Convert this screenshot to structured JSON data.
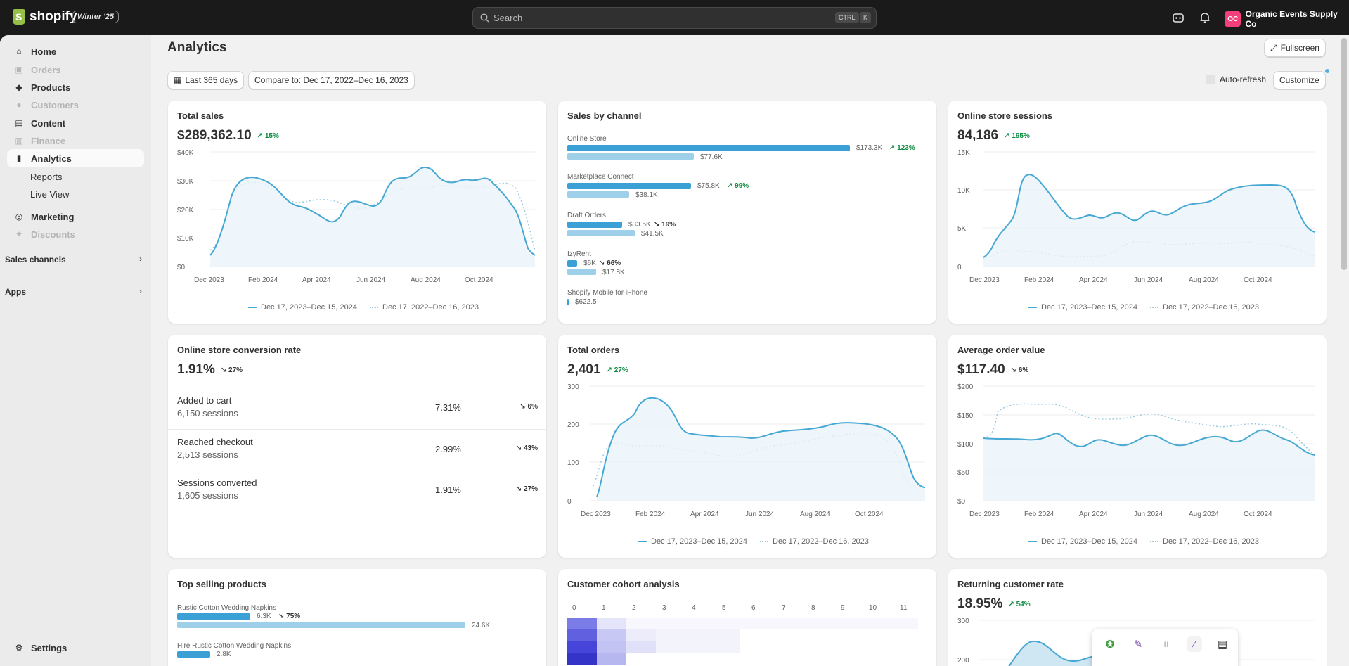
{
  "topbar": {
    "brand": "shopify",
    "edition_badge": "Winter '25",
    "search_placeholder": "Search",
    "shortcut_ctrl": "CTRL",
    "shortcut_k": "K",
    "store_initials": "OC",
    "store_name": "Organic Events Supply Co"
  },
  "sidebar": {
    "items": [
      {
        "label": "Home",
        "icon": "home-icon"
      },
      {
        "label": "Orders",
        "icon": "orders-icon"
      },
      {
        "label": "Products",
        "icon": "tag-icon"
      },
      {
        "label": "Customers",
        "icon": "person-icon"
      },
      {
        "label": "Content",
        "icon": "content-icon"
      },
      {
        "label": "Finance",
        "icon": "bank-icon"
      },
      {
        "label": "Analytics",
        "icon": "chart-icon"
      },
      {
        "label": "Marketing",
        "icon": "target-icon"
      },
      {
        "label": "Discounts",
        "icon": "discount-icon"
      }
    ],
    "sub_reports": "Reports",
    "sub_live_view": "Live View",
    "sales_channels": "Sales channels",
    "apps": "Apps",
    "settings": "Settings"
  },
  "page": {
    "title": "Analytics",
    "fullscreen": "Fullscreen",
    "date_range": "Last 365 days",
    "compare": "Compare to: Dec 17, 2022–Dec 16, 2023",
    "auto_refresh": "Auto-refresh",
    "customize": "Customize"
  },
  "legend": {
    "current": "Dec 17, 2023–Dec 15, 2024",
    "previous": "Dec 17, 2022–Dec 16, 2023"
  },
  "x_ticks": [
    "Dec 2023",
    "Feb 2024",
    "Apr 2024",
    "Jun 2024",
    "Aug 2024",
    "Oct 2024"
  ],
  "total_sales": {
    "title": "Total sales",
    "value": "$289,362.10",
    "delta": "↗ 15%",
    "y_ticks": [
      "$40K",
      "$30K",
      "$20K",
      "$10K",
      "$0"
    ]
  },
  "sales_by_channel": {
    "title": "Sales by channel",
    "channels": [
      {
        "name": "Online Store",
        "current": "$173.3K",
        "previous": "$77.6K",
        "delta": "↗ 123%"
      },
      {
        "name": "Marketplace Connect",
        "current": "$75.8K",
        "previous": "$38.1K",
        "delta": "↗ 99%"
      },
      {
        "name": "Draft Orders",
        "current": "$33.5K",
        "previous": "$41.5K",
        "delta": "↘ 19%"
      },
      {
        "name": "IzyRent",
        "current": "$6K",
        "previous": "$17.8K",
        "delta": "↘ 66%"
      },
      {
        "name": "Shopify Mobile for iPhone",
        "current": "$622.5",
        "previous": "",
        "delta": ""
      }
    ]
  },
  "online_sessions": {
    "title": "Online store sessions",
    "value": "84,186",
    "delta": "↗ 195%",
    "y_ticks": [
      "15K",
      "10K",
      "5K",
      "0"
    ]
  },
  "conversion": {
    "title": "Online store conversion rate",
    "value": "1.91%",
    "delta": "↘ 27%",
    "rows": [
      {
        "label": "Added to cart",
        "sessions": "6,150 sessions",
        "pct": "7.31%",
        "change": "↘ 6%"
      },
      {
        "label": "Reached checkout",
        "sessions": "2,513 sessions",
        "pct": "2.99%",
        "change": "↘ 43%"
      },
      {
        "label": "Sessions converted",
        "sessions": "1,605 sessions",
        "pct": "1.91%",
        "change": "↘ 27%"
      }
    ]
  },
  "total_orders": {
    "title": "Total orders",
    "value": "2,401",
    "delta": "↗ 27%",
    "y_ticks": [
      "300",
      "200",
      "100",
      "0"
    ]
  },
  "aov": {
    "title": "Average order value",
    "value": "$117.40",
    "delta": "↘ 6%",
    "y_ticks": [
      "$200",
      "$150",
      "$100",
      "$50",
      "$0"
    ]
  },
  "top_products": {
    "title": "Top selling products",
    "items": [
      {
        "name": "Rustic Cotton Wedding Napkins",
        "current": "6.3K",
        "delta": "↘ 75%",
        "previous": "24.6K"
      },
      {
        "name": "Hire Rustic Cotton Wedding Napkins",
        "current": "2.8K",
        "delta": "",
        "previous": ""
      }
    ]
  },
  "cohort": {
    "title": "Customer cohort analysis",
    "columns": [
      "0",
      "1",
      "2",
      "3",
      "4",
      "5",
      "6",
      "7",
      "8",
      "9",
      "10",
      "11"
    ]
  },
  "returning": {
    "title": "Returning customer rate",
    "value": "18.95%",
    "delta": "↗ 54%",
    "y_ticks": [
      "300",
      "200"
    ]
  },
  "colors": {
    "accent": "#3ba0d5",
    "accent_light": "#9fd0ea",
    "positive": "#0c8a3f",
    "topbar": "#1a1a1a"
  }
}
